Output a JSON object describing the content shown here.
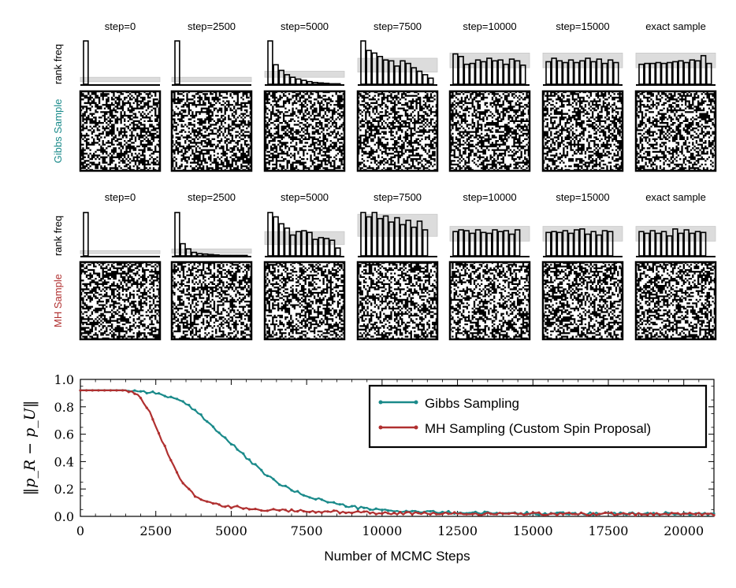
{
  "samples_panel": {
    "steps": [
      "step=0",
      "step=2500",
      "step=5000",
      "step=7500",
      "step=10000",
      "step=15000",
      "exact sample"
    ],
    "rank_freq_label": "rank freq",
    "rows": [
      {
        "label": "Gibbs Sample",
        "color": "#1a8a8a",
        "histograms": [
          [
            10,
            0,
            0,
            0,
            0,
            0,
            0,
            0,
            0,
            0,
            0,
            0,
            0
          ],
          [
            10,
            0,
            0,
            0,
            0,
            0,
            0,
            0,
            0,
            0,
            0,
            0,
            0
          ],
          [
            10,
            4.5,
            3.2,
            2.2,
            1.6,
            1.2,
            0.9,
            0.6,
            0.4,
            0.3,
            0.2,
            0.1,
            0.1
          ],
          [
            10,
            7.8,
            7.2,
            6.4,
            5.6,
            5.4,
            4.2,
            5.4,
            4.8,
            3.8,
            3.0,
            2.2,
            1.4
          ],
          [
            7.0,
            6.4,
            4.6,
            4.8,
            5.6,
            5.2,
            6.0,
            5.4,
            5.6,
            4.6,
            5.8,
            5.4,
            4.4
          ],
          [
            5.2,
            6.0,
            5.4,
            5.0,
            5.6,
            5.0,
            5.4,
            6.0,
            5.2,
            5.8,
            4.8,
            5.6,
            5.0
          ],
          [
            4.6,
            4.8,
            4.8,
            5.0,
            4.8,
            5.0,
            5.2,
            5.4,
            5.0,
            5.6,
            5.4,
            6.6,
            4.8
          ]
        ],
        "bands": [
          [
            0.6,
            1.6
          ],
          [
            0.6,
            1.6
          ],
          [
            1.6,
            3.0
          ],
          [
            2.8,
            6.0
          ],
          [
            3.8,
            7.2
          ],
          [
            3.8,
            7.2
          ],
          [
            3.8,
            7.2
          ]
        ]
      },
      {
        "label": "MH Sample",
        "color": "#b03030",
        "histograms": [
          [
            10,
            0,
            0,
            0,
            0,
            0,
            0,
            0,
            0,
            0,
            0,
            0,
            0
          ],
          [
            10,
            2.8,
            1.6,
            0.8,
            0.5,
            0.4,
            0.3,
            0.2,
            0.1,
            0.1,
            0.1,
            0.1,
            0.1
          ],
          [
            10,
            9.0,
            7.4,
            6.4,
            4.8,
            5.6,
            5.8,
            5.4,
            3.8,
            4.2,
            4.0,
            3.6,
            1.8
          ],
          [
            10,
            9.0,
            10,
            8.6,
            9.2,
            7.8,
            8.8,
            7.2,
            8.2,
            6.6,
            8.0,
            6.0,
            0
          ],
          [
            5.6,
            6.0,
            5.8,
            5.2,
            6.0,
            5.4,
            5.2,
            6.0,
            5.6,
            5.8,
            5.0,
            6.0,
            0
          ],
          [
            5.4,
            5.6,
            5.4,
            5.8,
            5.2,
            6.0,
            6.2,
            5.0,
            5.6,
            4.8,
            5.8,
            5.6,
            0
          ],
          [
            5.6,
            5.2,
            5.8,
            5.2,
            5.6,
            4.6,
            6.2,
            5.2,
            6.0,
            5.2,
            5.6,
            5.4,
            0
          ]
        ],
        "bands": [
          [
            0.5,
            1.2
          ],
          [
            0.6,
            1.6
          ],
          [
            2.6,
            5.6
          ],
          [
            4.5,
            9.6
          ],
          [
            3.4,
            6.8
          ],
          [
            3.4,
            6.8
          ],
          [
            3.4,
            6.8
          ]
        ]
      }
    ]
  },
  "chart_data": {
    "type": "line",
    "xlabel": "Number of MCMC Steps",
    "ylabel": "‖p_R − p_U‖",
    "xlim": [
      0,
      21000
    ],
    "ylim": [
      0,
      1.0
    ],
    "xticks": [
      "0",
      "2500",
      "5000",
      "7500",
      "10000",
      "12500",
      "15000",
      "17500",
      "20000"
    ],
    "yticks": [
      "0.0",
      "0.2",
      "0.4",
      "0.6",
      "0.8",
      "1.0"
    ],
    "grid": false,
    "legend_position": "top-right",
    "series": [
      {
        "name": "Gibbs Sampling",
        "color": "#1a8a8a",
        "points": [
          [
            0,
            0.92
          ],
          [
            1500,
            0.92
          ],
          [
            2000,
            0.915
          ],
          [
            2500,
            0.9
          ],
          [
            3000,
            0.87
          ],
          [
            3500,
            0.82
          ],
          [
            4000,
            0.74
          ],
          [
            4500,
            0.63
          ],
          [
            5000,
            0.53
          ],
          [
            5500,
            0.43
          ],
          [
            6000,
            0.33
          ],
          [
            6500,
            0.25
          ],
          [
            7000,
            0.19
          ],
          [
            7500,
            0.15
          ],
          [
            8000,
            0.12
          ],
          [
            8500,
            0.09
          ],
          [
            9000,
            0.07
          ],
          [
            9500,
            0.055
          ],
          [
            10000,
            0.045
          ],
          [
            11000,
            0.035
          ],
          [
            12000,
            0.03
          ],
          [
            13000,
            0.025
          ],
          [
            15000,
            0.022
          ],
          [
            17500,
            0.02
          ],
          [
            21000,
            0.02
          ]
        ]
      },
      {
        "name": "MH Sampling (Custom Spin Proposal)",
        "color": "#b03030",
        "points": [
          [
            0,
            0.92
          ],
          [
            1500,
            0.92
          ],
          [
            1800,
            0.9
          ],
          [
            2000,
            0.86
          ],
          [
            2250,
            0.78
          ],
          [
            2500,
            0.66
          ],
          [
            2750,
            0.53
          ],
          [
            3000,
            0.41
          ],
          [
            3250,
            0.3
          ],
          [
            3500,
            0.22
          ],
          [
            3750,
            0.16
          ],
          [
            4000,
            0.12
          ],
          [
            4500,
            0.09
          ],
          [
            5000,
            0.07
          ],
          [
            5500,
            0.06
          ],
          [
            6000,
            0.05
          ],
          [
            7000,
            0.04
          ],
          [
            8000,
            0.035
          ],
          [
            9000,
            0.03
          ],
          [
            10000,
            0.025
          ],
          [
            12500,
            0.02
          ],
          [
            15000,
            0.018
          ],
          [
            21000,
            0.018
          ]
        ]
      }
    ]
  }
}
